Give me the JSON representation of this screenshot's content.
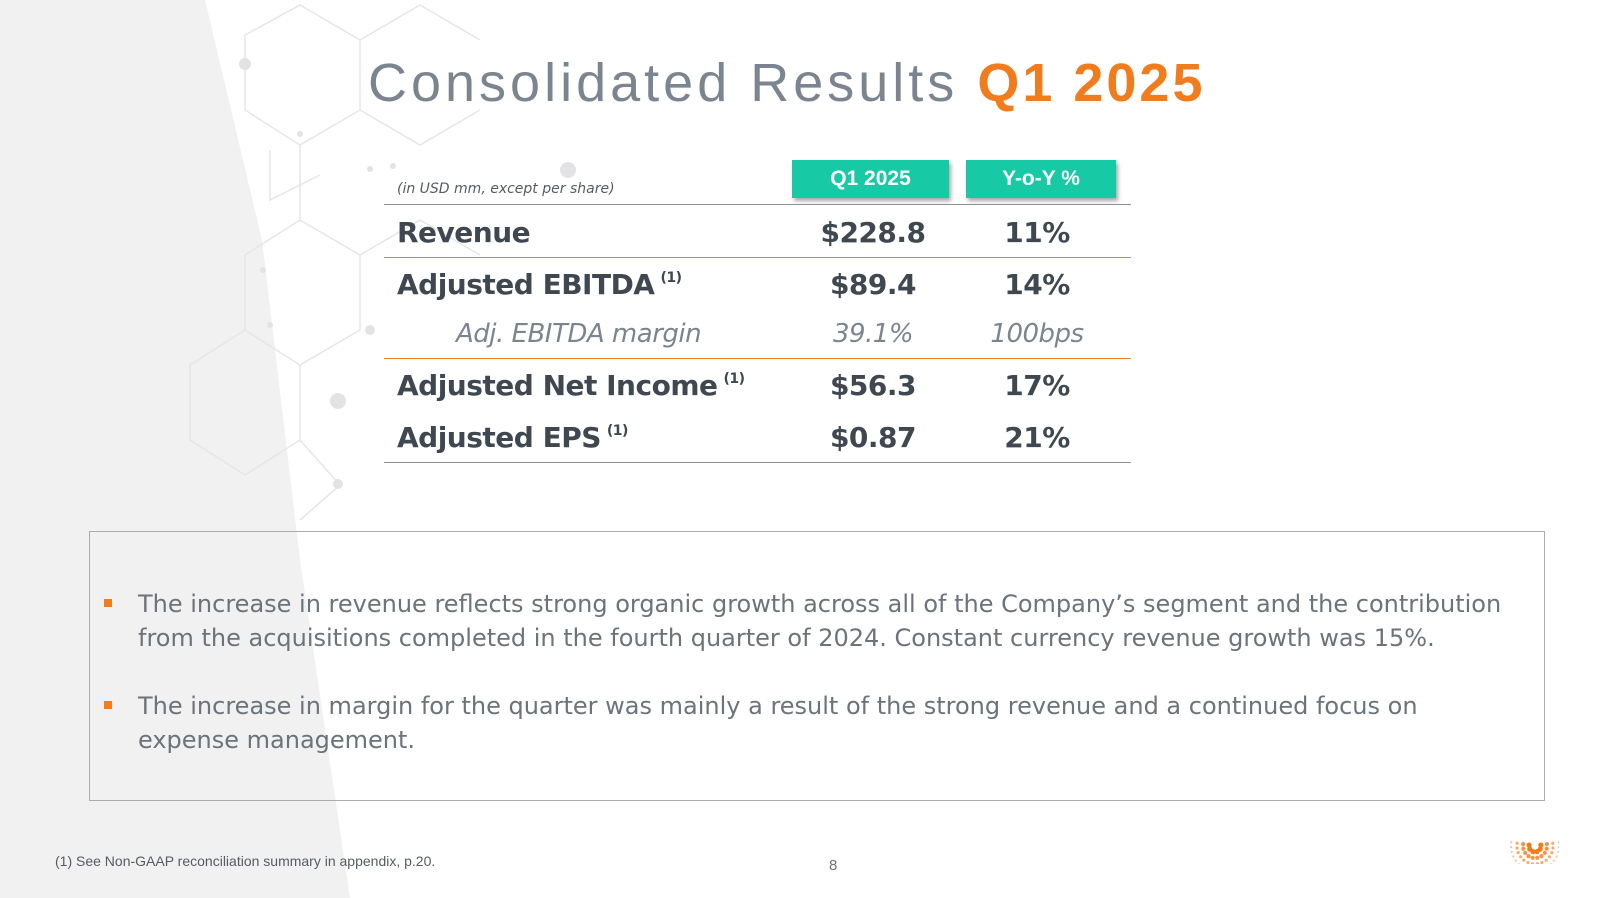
{
  "slide": {
    "title_main": "Consolidated Results",
    "title_accent": "Q1 2025",
    "colors": {
      "accent": "#f07c1e",
      "header_badge": "#18c9a6",
      "text": "#3f4851"
    }
  },
  "table": {
    "unit_note": "(in USD mm, except per share)",
    "col_headers": [
      "Q1 2025",
      "Y-o-Y %"
    ],
    "rows": [
      {
        "label": "Revenue",
        "note": "",
        "value": "$228.8",
        "yoy": "11%"
      },
      {
        "label": "Adjusted EBITDA",
        "note": "(1)",
        "value": "$89.4",
        "yoy": "14%"
      },
      {
        "label": "Adj. EBITDA margin",
        "note": "",
        "value": "39.1%",
        "yoy": "100bps"
      },
      {
        "label": "Adjusted Net Income",
        "note": "(1)",
        "value": "$56.3",
        "yoy": "17%"
      },
      {
        "label": "Adjusted EPS",
        "note": "(1)",
        "value": "$0.87",
        "yoy": "21%"
      }
    ]
  },
  "commentary": {
    "bullets": [
      "The increase in revenue reflects strong organic growth across all of the Company’s segment and the contribution from the acquisitions completed in the fourth quarter of 2024. Constant currency revenue growth was 15%.",
      "The increase in margin for the quarter was mainly a result of the strong revenue and a continued focus on expense management."
    ]
  },
  "footer": {
    "footnote": "(1) See Non-GAAP reconciliation summary in appendix, p.20.",
    "page_number": "8",
    "logo_icon": "dotted-sunburst-logo-icon"
  }
}
